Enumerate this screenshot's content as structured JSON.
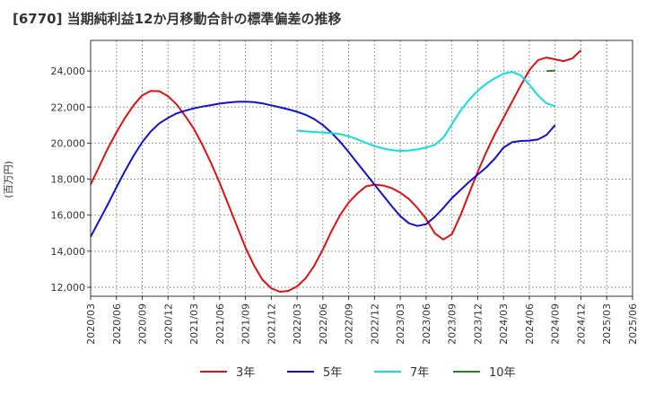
{
  "chart_data": {
    "type": "line",
    "title": "[6770]  当期純利益12か月移動合計の標準偏差の推移",
    "ylabel": "(百万円)",
    "xlabel": "",
    "ylim": [
      11500,
      25700
    ],
    "yticks": [
      12000,
      14000,
      16000,
      18000,
      20000,
      22000,
      24000
    ],
    "ytick_labels": [
      "12,000",
      "14,000",
      "16,000",
      "18,000",
      "20,000",
      "22,000",
      "24,000"
    ],
    "xticks": [
      "2020/03",
      "2020/06",
      "2020/09",
      "2020/12",
      "2021/03",
      "2021/06",
      "2021/09",
      "2021/12",
      "2022/03",
      "2022/06",
      "2022/09",
      "2022/12",
      "2023/03",
      "2023/06",
      "2023/09",
      "2023/12",
      "2024/03",
      "2024/06",
      "2024/09",
      "2024/12",
      "2025/03",
      "2025/06"
    ],
    "grid": true,
    "legend_position": "bottom",
    "series": [
      {
        "name": "3年",
        "color": "#dd1111",
        "points": [
          [
            "2020/03",
            17700
          ],
          [
            "2020/04",
            18700
          ],
          [
            "2020/05",
            19700
          ],
          [
            "2020/06",
            20600
          ],
          [
            "2020/07",
            21400
          ],
          [
            "2020/08",
            22100
          ],
          [
            "2020/09",
            22650
          ],
          [
            "2020/10",
            22900
          ],
          [
            "2020/11",
            22880
          ],
          [
            "2020/12",
            22600
          ],
          [
            "2021/01",
            22150
          ],
          [
            "2021/02",
            21500
          ],
          [
            "2021/03",
            20800
          ],
          [
            "2021/04",
            19900
          ],
          [
            "2021/05",
            18900
          ],
          [
            "2021/06",
            17800
          ],
          [
            "2021/07",
            16600
          ],
          [
            "2021/08",
            15400
          ],
          [
            "2021/09",
            14200
          ],
          [
            "2021/10",
            13200
          ],
          [
            "2021/11",
            12400
          ],
          [
            "2021/12",
            11950
          ],
          [
            "2022/01",
            11750
          ],
          [
            "2022/02",
            11800
          ],
          [
            "2022/03",
            12050
          ],
          [
            "2022/04",
            12500
          ],
          [
            "2022/05",
            13200
          ],
          [
            "2022/06",
            14100
          ],
          [
            "2022/07",
            15100
          ],
          [
            "2022/08",
            16000
          ],
          [
            "2022/09",
            16700
          ],
          [
            "2022/10",
            17200
          ],
          [
            "2022/11",
            17600
          ],
          [
            "2022/12",
            17700
          ],
          [
            "2023/01",
            17650
          ],
          [
            "2023/02",
            17500
          ],
          [
            "2023/03",
            17250
          ],
          [
            "2023/04",
            16900
          ],
          [
            "2023/05",
            16400
          ],
          [
            "2023/06",
            15800
          ],
          [
            "2023/07",
            15000
          ],
          [
            "2023/08",
            14650
          ],
          [
            "2023/09",
            14950
          ],
          [
            "2023/10",
            16000
          ],
          [
            "2023/11",
            17200
          ],
          [
            "2023/12",
            18400
          ],
          [
            "2024/01",
            19500
          ],
          [
            "2024/02",
            20500
          ],
          [
            "2024/03",
            21400
          ],
          [
            "2024/04",
            22300
          ],
          [
            "2024/05",
            23200
          ],
          [
            "2024/06",
            24050
          ],
          [
            "2024/07",
            24600
          ],
          [
            "2024/08",
            24750
          ],
          [
            "2024/09",
            24650
          ],
          [
            "2024/10",
            24550
          ],
          [
            "2024/11",
            24700
          ],
          [
            "2024/12",
            25150
          ]
        ]
      },
      {
        "name": "5年",
        "color": "#1111cc",
        "points": [
          [
            "2020/03",
            14800
          ],
          [
            "2020/04",
            15700
          ],
          [
            "2020/05",
            16600
          ],
          [
            "2020/06",
            17550
          ],
          [
            "2020/07",
            18450
          ],
          [
            "2020/08",
            19300
          ],
          [
            "2020/09",
            20050
          ],
          [
            "2020/10",
            20650
          ],
          [
            "2020/11",
            21100
          ],
          [
            "2020/12",
            21400
          ],
          [
            "2021/01",
            21650
          ],
          [
            "2021/02",
            21800
          ],
          [
            "2021/03",
            21930
          ],
          [
            "2021/04",
            22030
          ],
          [
            "2021/05",
            22110
          ],
          [
            "2021/06",
            22190
          ],
          [
            "2021/07",
            22250
          ],
          [
            "2021/08",
            22290
          ],
          [
            "2021/09",
            22300
          ],
          [
            "2021/10",
            22270
          ],
          [
            "2021/11",
            22200
          ],
          [
            "2021/12",
            22100
          ],
          [
            "2022/01",
            21990
          ],
          [
            "2022/02",
            21870
          ],
          [
            "2022/03",
            21740
          ],
          [
            "2022/04",
            21570
          ],
          [
            "2022/05",
            21330
          ],
          [
            "2022/06",
            21000
          ],
          [
            "2022/07",
            20580
          ],
          [
            "2022/08",
            20080
          ],
          [
            "2022/09",
            19500
          ],
          [
            "2022/10",
            18900
          ],
          [
            "2022/11",
            18300
          ],
          [
            "2022/12",
            17700
          ],
          [
            "2023/01",
            17100
          ],
          [
            "2023/02",
            16500
          ],
          [
            "2023/03",
            15950
          ],
          [
            "2023/04",
            15550
          ],
          [
            "2023/05",
            15400
          ],
          [
            "2023/06",
            15500
          ],
          [
            "2023/07",
            15900
          ],
          [
            "2023/08",
            16400
          ],
          [
            "2023/09",
            16950
          ],
          [
            "2023/10",
            17400
          ],
          [
            "2023/11",
            17850
          ],
          [
            "2023/12",
            18250
          ],
          [
            "2024/01",
            18650
          ],
          [
            "2024/02",
            19150
          ],
          [
            "2024/03",
            19750
          ],
          [
            "2024/04",
            20050
          ],
          [
            "2024/05",
            20120
          ],
          [
            "2024/06",
            20140
          ],
          [
            "2024/07",
            20200
          ],
          [
            "2024/08",
            20450
          ],
          [
            "2024/09",
            21000
          ]
        ]
      },
      {
        "name": "7年",
        "color": "#11dddd",
        "points": [
          [
            "2022/03",
            20700
          ],
          [
            "2022/04",
            20650
          ],
          [
            "2022/05",
            20620
          ],
          [
            "2022/06",
            20590
          ],
          [
            "2022/07",
            20560
          ],
          [
            "2022/08",
            20500
          ],
          [
            "2022/09",
            20380
          ],
          [
            "2022/10",
            20210
          ],
          [
            "2022/11",
            20020
          ],
          [
            "2022/12",
            19830
          ],
          [
            "2023/01",
            19700
          ],
          [
            "2023/02",
            19610
          ],
          [
            "2023/03",
            19570
          ],
          [
            "2023/04",
            19590
          ],
          [
            "2023/05",
            19650
          ],
          [
            "2023/06",
            19750
          ],
          [
            "2023/07",
            19900
          ],
          [
            "2023/08",
            20300
          ],
          [
            "2023/09",
            21050
          ],
          [
            "2023/10",
            21800
          ],
          [
            "2023/11",
            22400
          ],
          [
            "2023/12",
            22900
          ],
          [
            "2024/01",
            23300
          ],
          [
            "2024/02",
            23600
          ],
          [
            "2024/03",
            23850
          ],
          [
            "2024/04",
            23950
          ],
          [
            "2024/05",
            23750
          ],
          [
            "2024/06",
            23250
          ],
          [
            "2024/07",
            22650
          ],
          [
            "2024/08",
            22200
          ],
          [
            "2024/09",
            22050
          ]
        ]
      },
      {
        "name": "10年",
        "color": "#228822",
        "points": [
          [
            "2024/08",
            24000
          ],
          [
            "2024/09",
            24020
          ]
        ]
      }
    ]
  }
}
